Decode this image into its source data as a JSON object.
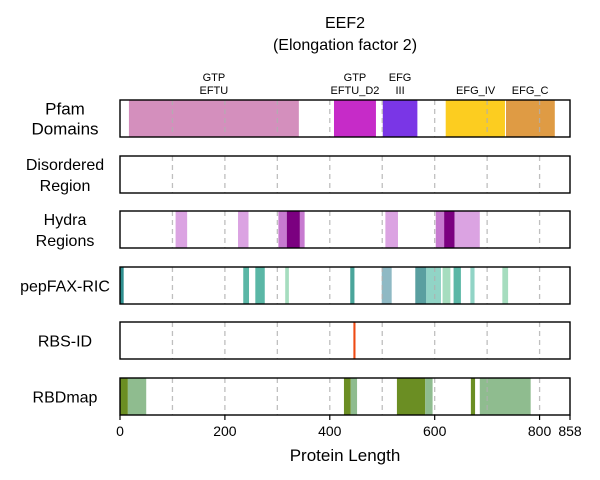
{
  "chart_data": {
    "type": "domain-track",
    "title": "EEF2",
    "subtitle": "(Elongation factor 2)",
    "xlabel": "Protein Length",
    "xlim": [
      0,
      858
    ],
    "xticks": [
      0,
      200,
      400,
      600,
      800,
      858
    ],
    "gridlines": [
      100,
      200,
      300,
      400,
      500,
      600,
      700,
      800
    ],
    "tracks": [
      {
        "label": [
          "Pfam",
          "Domains"
        ],
        "segments": [
          {
            "start": 17,
            "end": 341,
            "color": "#d48fbd"
          },
          {
            "start": 408,
            "end": 488,
            "color": "#c62bc8"
          },
          {
            "start": 501,
            "end": 567,
            "color": "#7a36e6"
          },
          {
            "start": 621,
            "end": 734,
            "color": "#fccd20"
          },
          {
            "start": 736,
            "end": 829,
            "color": "#df9b44"
          }
        ],
        "domain_labels": [
          {
            "lines": [
              "GTP",
              "EFTU"
            ],
            "pos": 179
          },
          {
            "lines": [
              "GTP",
              "EFTU_D2"
            ],
            "pos": 448
          },
          {
            "lines": [
              "EFG",
              "III"
            ],
            "pos": 534
          },
          {
            "lines": [
              "EFG_IV"
            ],
            "pos": 678
          },
          {
            "lines": [
              "EFG_C"
            ],
            "pos": 782
          }
        ]
      },
      {
        "label": [
          "Disordered",
          "Region"
        ],
        "segments": []
      },
      {
        "label": [
          "Hydra",
          "Regions"
        ],
        "segments": [
          {
            "start": 106,
            "end": 128,
            "color": "#dba3e2"
          },
          {
            "start": 225,
            "end": 245,
            "color": "#dba3e2"
          },
          {
            "start": 302,
            "end": 318,
            "color": "#c77ad0"
          },
          {
            "start": 318,
            "end": 343,
            "color": "#7b0080"
          },
          {
            "start": 343,
            "end": 352,
            "color": "#c77ad0"
          },
          {
            "start": 506,
            "end": 530,
            "color": "#dba3e2"
          },
          {
            "start": 602,
            "end": 618,
            "color": "#c77ad0"
          },
          {
            "start": 618,
            "end": 638,
            "color": "#7b0080"
          },
          {
            "start": 638,
            "end": 686,
            "color": "#dba3e2"
          }
        ]
      },
      {
        "label": [
          "pepFAX-RIC"
        ],
        "segments": [
          {
            "start": 0,
            "end": 7,
            "color": "#2f8f8f"
          },
          {
            "start": 235,
            "end": 246,
            "color": "#5bb7a6"
          },
          {
            "start": 258,
            "end": 276,
            "color": "#5bb7a6"
          },
          {
            "start": 315,
            "end": 322,
            "color": "#a6ddbf"
          },
          {
            "start": 439,
            "end": 447,
            "color": "#4aa59b"
          },
          {
            "start": 499,
            "end": 518,
            "color": "#8fb9c4"
          },
          {
            "start": 563,
            "end": 584,
            "color": "#5a9fa0"
          },
          {
            "start": 584,
            "end": 612,
            "color": "#91d4c6"
          },
          {
            "start": 615,
            "end": 630,
            "color": "#a6ddbf"
          },
          {
            "start": 636,
            "end": 650,
            "color": "#5bb7a6"
          },
          {
            "start": 668,
            "end": 676,
            "color": "#91d4c6"
          },
          {
            "start": 729,
            "end": 740,
            "color": "#a6ddbf"
          }
        ]
      },
      {
        "label": [
          "RBS-ID"
        ],
        "segments": [
          {
            "start": 445,
            "end": 449,
            "color": "#ee4a14"
          }
        ]
      },
      {
        "label": [
          "RBDmap"
        ],
        "segments": [
          {
            "start": 0,
            "end": 15,
            "color": "#6b8e23"
          },
          {
            "start": 15,
            "end": 50,
            "color": "#8fbc8f"
          },
          {
            "start": 427,
            "end": 440,
            "color": "#6b8e23"
          },
          {
            "start": 440,
            "end": 452,
            "color": "#8fbc8f"
          },
          {
            "start": 528,
            "end": 582,
            "color": "#6b8e23"
          },
          {
            "start": 582,
            "end": 596,
            "color": "#8fbc8f"
          },
          {
            "start": 669,
            "end": 677,
            "color": "#6b8e23"
          },
          {
            "start": 686,
            "end": 783,
            "color": "#8fbc8f"
          }
        ]
      }
    ]
  }
}
